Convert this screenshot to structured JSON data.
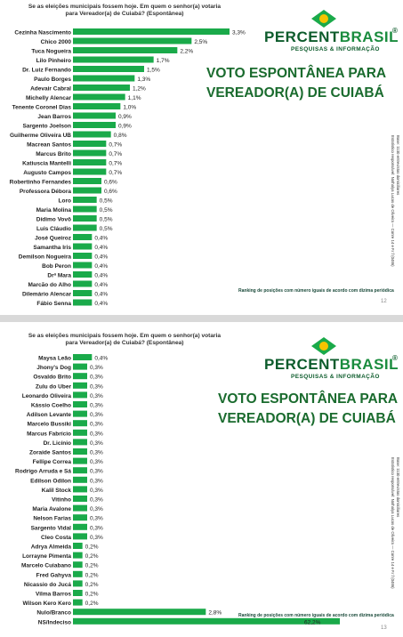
{
  "chart_data": [
    {
      "type": "bar",
      "orientation": "horizontal",
      "question": "Se as eleições municipais fossem hoje. Em quem o senhor(a) votaria para Vereador(a) de Cuiabá? (Espontânea)",
      "title": "VOTO ESPONTÂNEA PARA VEREADOR(A) DE CUIABÁ",
      "xlim": [
        0,
        3.3
      ],
      "categories": [
        "Cezinha Nascimento",
        "Chico 2000",
        "Tuca Nogueira",
        "Lilo Pinheiro",
        "Dr. Luiz Fernando",
        "Paulo Borges",
        "Adevair Cabral",
        "Michelly Alencar",
        "Tenente Coronel Dias",
        "Jean Barros",
        "Sargento Joelson",
        "Guilherme Oliveira UB",
        "Macrean Santos",
        "Marcus Brito",
        "Katiuscia Mantelli",
        "Augusto Campos",
        "Robertinho Fernandes",
        "Professora Débora",
        "Loro",
        "Maria Molina",
        "Dídimo Vovô",
        "Luis Cláudio",
        "José Queiroz",
        "Samantha Iris",
        "Demilson Nogueira",
        "Bob Peron",
        "Drª Mara",
        "Marcão do Alho",
        "Dilemário Alencar",
        "Fábio Senna"
      ],
      "values": [
        3.3,
        2.5,
        2.2,
        1.7,
        1.5,
        1.3,
        1.2,
        1.1,
        1.0,
        0.9,
        0.9,
        0.8,
        0.7,
        0.7,
        0.7,
        0.7,
        0.6,
        0.6,
        0.5,
        0.5,
        0.5,
        0.5,
        0.4,
        0.4,
        0.4,
        0.4,
        0.4,
        0.4,
        0.4,
        0.4
      ],
      "value_labels": [
        "3,3%",
        "2,5%",
        "2,2%",
        "1,7%",
        "1,5%",
        "1,3%",
        "1,2%",
        "1,1%",
        "1,0%",
        "0,9%",
        "0,9%",
        "0,8%",
        "0,7%",
        "0,7%",
        "0,7%",
        "0,7%",
        "0,6%",
        "0,6%",
        "0,5%",
        "0,5%",
        "0,5%",
        "0,5%",
        "0,4%",
        "0,4%",
        "0,4%",
        "0,4%",
        "0,4%",
        "0,4%",
        "0,4%",
        "0,4%"
      ],
      "bar_color": "#1aaa4a"
    },
    {
      "type": "bar",
      "orientation": "horizontal",
      "question": "Se as eleições municipais fossem hoje. Em quem o senhor(a) votaria para Vereador(a) de Cuiabá? (Espontânea)",
      "title": "VOTO ESPONTÂNEA PARA VEREADOR(A) DE CUIABÁ",
      "xlim": [
        0,
        3.3
      ],
      "categories": [
        "Maysa Leão",
        "Jhony's Dog",
        "Osvaldo Brito",
        "Zulu do Uber",
        "Leonardo Oliveira",
        "Kássio Coelho",
        "Adilson Levante",
        "Marcelo Bussiki",
        "Marcus Fabrício",
        "Dr. Licínio",
        "Zoraide Santos",
        "Fellipe Correa",
        "Rodrigo Arruda e Sá",
        "Edilson Odilon",
        "Kalil Stock",
        "Vitinho",
        "Maria Avalone",
        "Nelson Farias",
        "Sargento Vidal",
        "Cleo Costa",
        "Adrya Almeida",
        "Lorrayne Pimenta",
        "Marcelo Cuiabano",
        "Fred Gahyva",
        "Nicassio do Jucá",
        "Vilma Barros",
        "Wilson Kero Kero",
        "Nulo/Branco",
        "NS/Indeciso"
      ],
      "values": [
        0.4,
        0.3,
        0.3,
        0.3,
        0.3,
        0.3,
        0.3,
        0.3,
        0.3,
        0.3,
        0.3,
        0.3,
        0.3,
        0.3,
        0.3,
        0.3,
        0.3,
        0.3,
        0.3,
        0.3,
        0.2,
        0.2,
        0.2,
        0.2,
        0.2,
        0.2,
        0.2,
        2.8,
        62.2
      ],
      "value_labels": [
        "0,4%",
        "0,3%",
        "0,3%",
        "0,3%",
        "0,3%",
        "0,3%",
        "0,3%",
        "0,3%",
        "0,3%",
        "0,3%",
        "0,3%",
        "0,3%",
        "0,3%",
        "0,3%",
        "0,3%",
        "0,3%",
        "0,3%",
        "0,3%",
        "0,3%",
        "0,3%",
        "0,2%",
        "0,2%",
        "0,2%",
        "0,2%",
        "0,2%",
        "0,2%",
        "0,2%",
        "2,8%",
        "62,2%"
      ],
      "bar_color": "#1aaa4a"
    }
  ],
  "slides": [
    {
      "question": "Se as eleições municipais fossem hoje. Em quem o senhor(a) votaria para Vereador(a) de Cuiabá? (Espontânea)",
      "heading_line1": "VOTO ESPONTÂNEA PARA",
      "heading_line2": "VEREADOR(A) DE CUIABÁ",
      "footer_note": "Ranking de posições com número iguais de acordo com dízima periódica",
      "page_number": "12",
      "sidenote_line1": "Base: 1130 entrevistas domiciliares",
      "sidenote_line2": "Estatístico responsável: Nathalya Lucas de Oliveira — Conre 14 e F.r.f (0486)"
    },
    {
      "question": "Se as eleições municipais fossem hoje. Em quem o senhor(a) votaria para Vereador(a) de Cuiabá? (Espontânea)",
      "heading_line1": "VOTO ESPONTÂNEA PARA",
      "heading_line2": "VEREADOR(A) DE CUIABÁ",
      "footer_note": "Ranking de posições com número iguais de acordo com dízima periódica",
      "page_number": "13",
      "sidenote_line1": "Base: 1130 entrevistas domiciliares",
      "sidenote_line2": "Estatístico responsável: Nathalya Lucas de Oliveira — Conre 14 e F.r.f (0486)"
    }
  ],
  "logo": {
    "main_part1": "PERCENT",
    "main_part2": "BRASIL",
    "registered": "®",
    "subtitle": "PESQUISAS & INFORMAÇÃO"
  },
  "colors": {
    "bar": "#1aaa4a",
    "heading": "#1a6b2e",
    "logo_dark": "#0d5c2c",
    "logo_light": "#1a8c3e"
  }
}
